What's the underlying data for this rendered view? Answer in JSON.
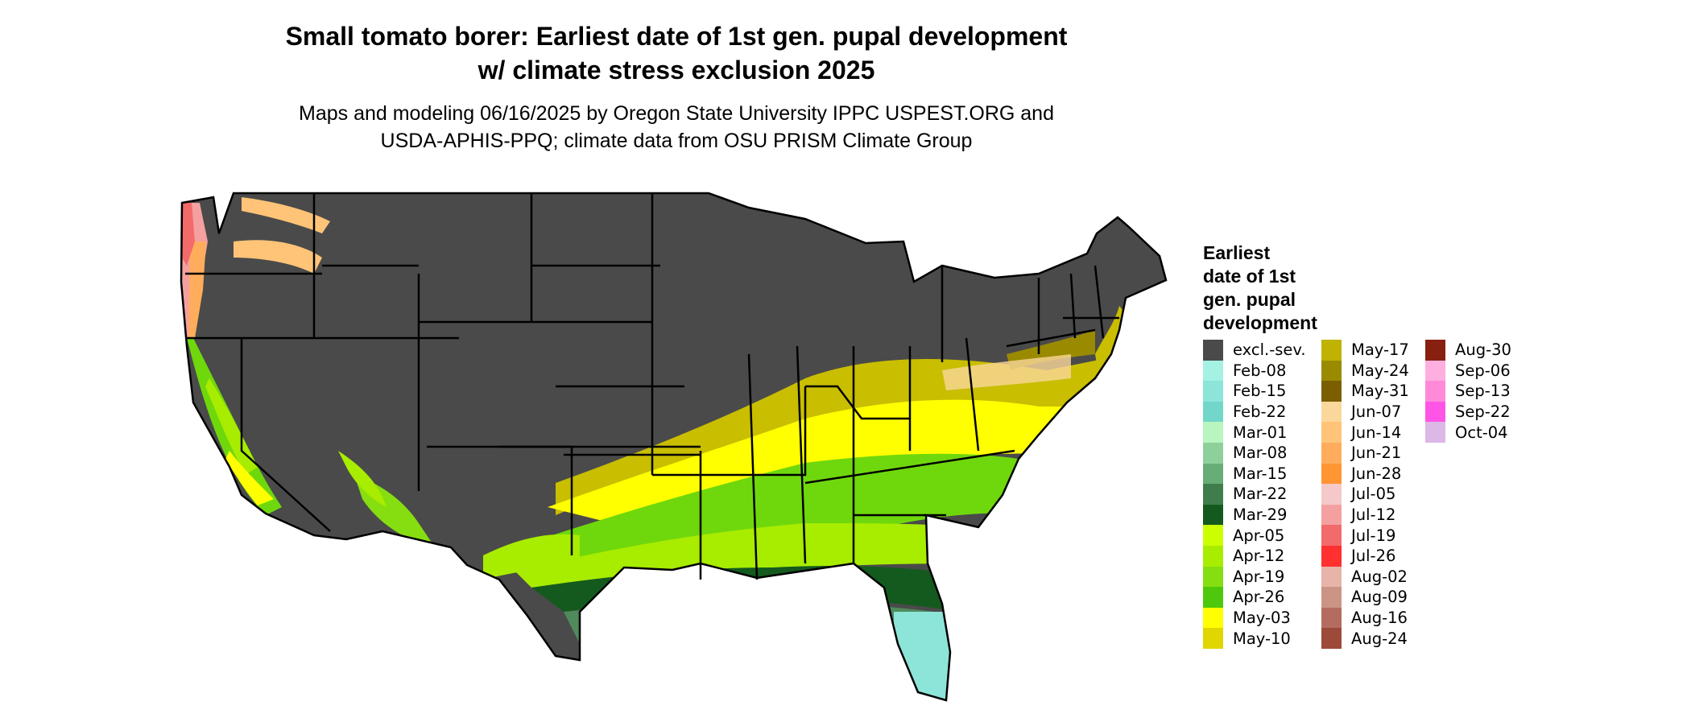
{
  "header": {
    "title_line1": "Small tomato borer: Earliest date of 1st gen. pupal development",
    "title_line2": "w/ climate stress exclusion 2025",
    "subtitle_line1": "Maps and modeling 06/16/2025 by Oregon State University IPPC USPEST.ORG and",
    "subtitle_line2": "USDA-APHIS-PPQ; climate data from OSU PRISM Climate Group"
  },
  "legend": {
    "title_lines": [
      "Earliest",
      "date of 1st",
      "gen. pupal",
      "development"
    ],
    "columns": [
      [
        {
          "label": "excl.-sev.",
          "color": "#4a4a4a"
        },
        {
          "label": "Feb-08",
          "color": "#a5f2e4"
        },
        {
          "label": "Feb-15",
          "color": "#8ce5d8"
        },
        {
          "label": "Feb-22",
          "color": "#72d6ca"
        },
        {
          "label": "Mar-01",
          "color": "#b8f5bf"
        },
        {
          "label": "Mar-08",
          "color": "#8ed09a"
        },
        {
          "label": "Mar-15",
          "color": "#67ad76"
        },
        {
          "label": "Mar-22",
          "color": "#3f7e4c"
        },
        {
          "label": "Mar-29",
          "color": "#145a1e"
        },
        {
          "label": "Apr-05",
          "color": "#ccff00"
        },
        {
          "label": "Apr-12",
          "color": "#a8ec00"
        },
        {
          "label": "Apr-19",
          "color": "#86de10"
        },
        {
          "label": "Apr-26",
          "color": "#4ec80c"
        },
        {
          "label": "May-03",
          "color": "#ffff00"
        },
        {
          "label": "May-10",
          "color": "#e0d600"
        }
      ],
      [
        {
          "label": "May-17",
          "color": "#bfb200"
        },
        {
          "label": "May-24",
          "color": "#9a8a00"
        },
        {
          "label": "May-31",
          "color": "#7b5e00"
        },
        {
          "label": "Jun-07",
          "color": "#fad79a"
        },
        {
          "label": "Jun-14",
          "color": "#ffc477"
        },
        {
          "label": "Jun-21",
          "color": "#ffad5c"
        },
        {
          "label": "Jun-28",
          "color": "#ff9533"
        },
        {
          "label": "Jul-05",
          "color": "#f5c9c9"
        },
        {
          "label": "Jul-12",
          "color": "#f4a0a0"
        },
        {
          "label": "Jul-19",
          "color": "#f26a6a"
        },
        {
          "label": "Jul-26",
          "color": "#ff3030"
        },
        {
          "label": "Aug-02",
          "color": "#e6b4a8"
        },
        {
          "label": "Aug-09",
          "color": "#cc9484"
        },
        {
          "label": "Aug-16",
          "color": "#b46c60"
        },
        {
          "label": "Aug-24",
          "color": "#9e4a3a"
        }
      ],
      [
        {
          "label": "Aug-30",
          "color": "#872010"
        },
        {
          "label": "Sep-06",
          "color": "#ffaee0"
        },
        {
          "label": "Sep-13",
          "color": "#ff8ada"
        },
        {
          "label": "Sep-22",
          "color": "#ff55e6"
        },
        {
          "label": "Oct-04",
          "color": "#dcb8e6"
        }
      ]
    ]
  }
}
